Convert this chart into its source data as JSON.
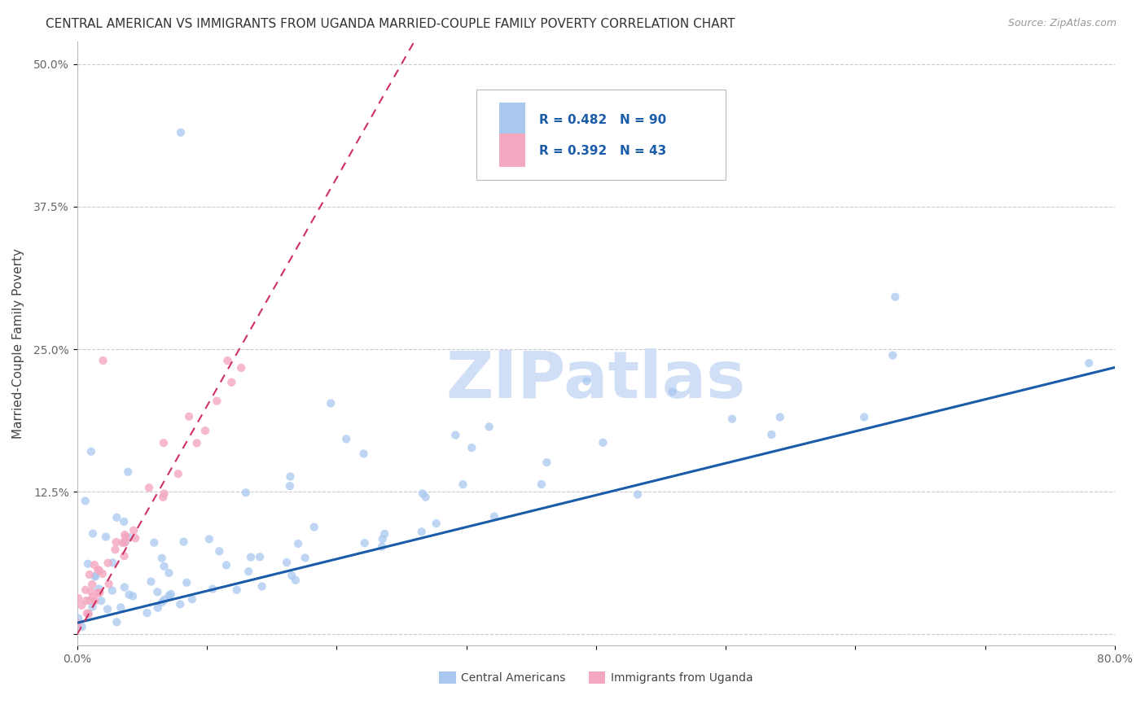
{
  "title": "CENTRAL AMERICAN VS IMMIGRANTS FROM UGANDA MARRIED-COUPLE FAMILY POVERTY CORRELATION CHART",
  "source": "Source: ZipAtlas.com",
  "xlabel": "",
  "ylabel": "Married-Couple Family Poverty",
  "xlim": [
    0.0,
    0.8
  ],
  "ylim": [
    -0.01,
    0.52
  ],
  "xticks": [
    0.0,
    0.1,
    0.2,
    0.3,
    0.4,
    0.5,
    0.6,
    0.7,
    0.8
  ],
  "xticklabels": [
    "0.0%",
    "",
    "",
    "",
    "",
    "",
    "",
    "",
    "80.0%"
  ],
  "yticks": [
    0.0,
    0.125,
    0.25,
    0.375,
    0.5
  ],
  "yticklabels": [
    "",
    "12.5%",
    "25.0%",
    "37.5%",
    "50.0%"
  ],
  "group1_label": "Central Americans",
  "group1_color": "#a8c8f0",
  "group1_R": 0.482,
  "group1_N": 90,
  "group1_line_color": "#1a5ca8",
  "group2_label": "Immigrants from Uganda",
  "group2_color": "#f4a8c0",
  "group2_R": 0.392,
  "group2_N": 43,
  "group2_line_color": "#d03060",
  "watermark": "ZIPatlas",
  "watermark_color": "#d0dff5",
  "background_color": "#ffffff",
  "grid_color": "#cccccc",
  "title_fontsize": 11,
  "axis_label_fontsize": 11,
  "tick_fontsize": 10,
  "legend_R_N_color": "#1a5ca8",
  "seed": 42
}
